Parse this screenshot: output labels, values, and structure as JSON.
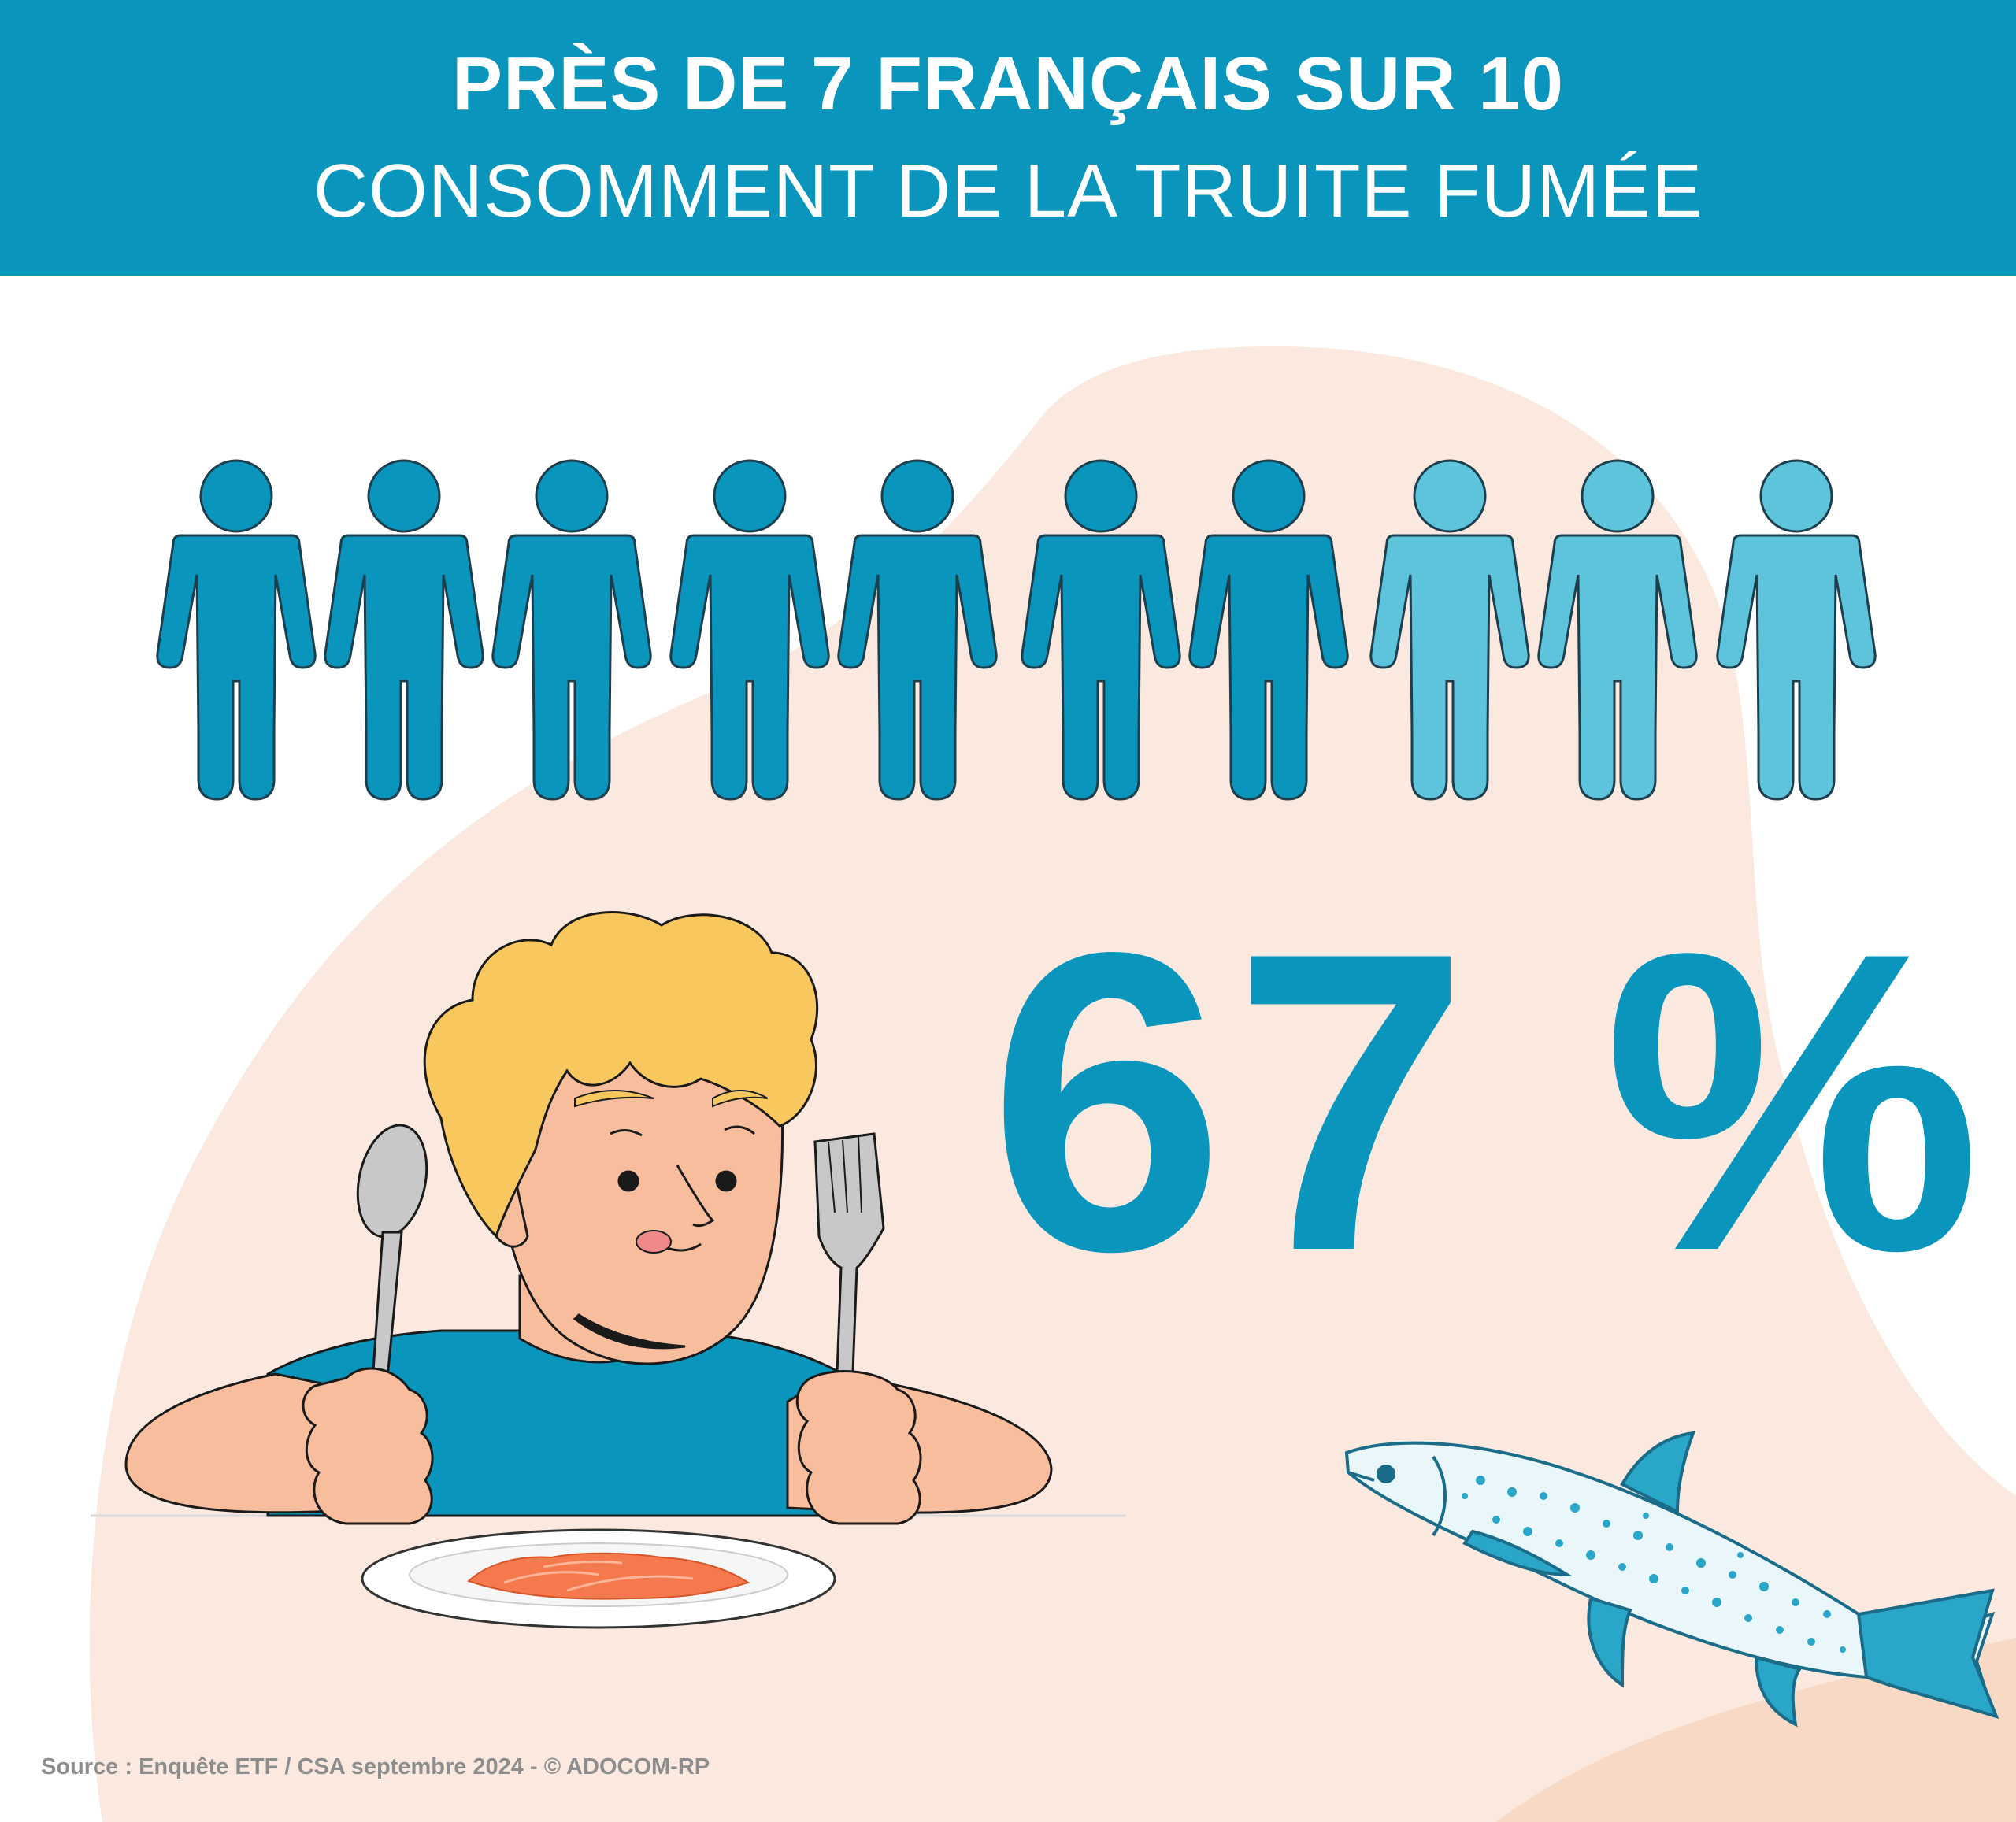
{
  "header": {
    "line1": "PRÈS DE 7 FRANÇAIS SUR 10",
    "line2": "CONSOMMENT DE LA TRUITE FUMÉE"
  },
  "stat": {
    "percent_label": "67 %",
    "value_percent": 67,
    "people_highlighted": 7,
    "people_total": 10
  },
  "colors": {
    "header_bg": "#0a95bd",
    "person_highlighted": "#0a95bd",
    "person_muted": "#5ec4dc",
    "blob": "#fbe9df",
    "fish": "#2aa6c9"
  },
  "icons": [
    "person-icon",
    "boy-eating-illustration",
    "trout-fish-icon"
  ],
  "footer": {
    "source": "Source : Enquête ETF / CSA septembre 2024 - © ADOCOM-RP"
  }
}
